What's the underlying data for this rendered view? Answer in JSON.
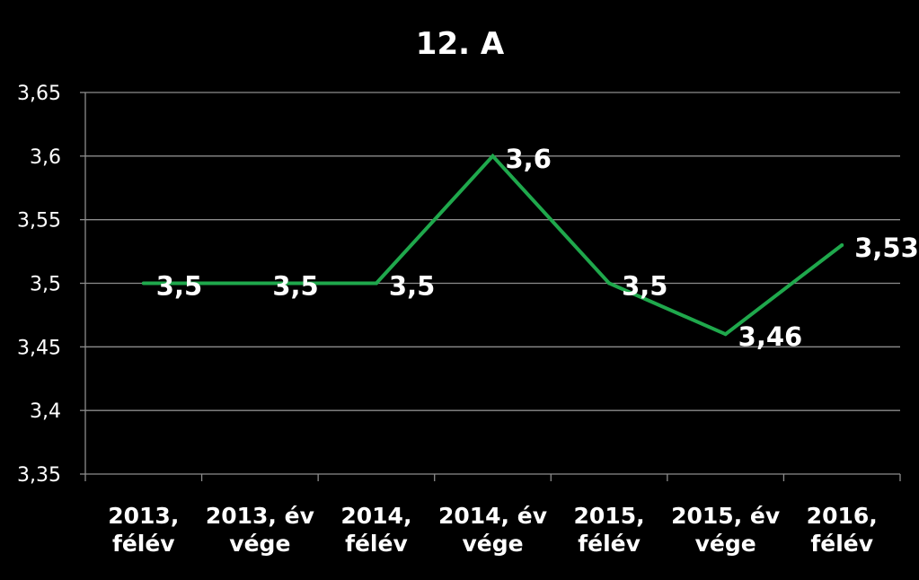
{
  "chart_data": {
    "type": "line",
    "title": "12. A",
    "xlabel": "",
    "ylabel": "",
    "categories": [
      [
        "2013,",
        "félév"
      ],
      [
        "2013, év",
        "vége"
      ],
      [
        "2014,",
        "félév"
      ],
      [
        "2014, év",
        "vége"
      ],
      [
        "2015,",
        "félév"
      ],
      [
        "2015, év",
        "vége"
      ],
      [
        "2016,",
        "félév"
      ]
    ],
    "series": [
      {
        "values": [
          3.5,
          3.5,
          3.5,
          3.6,
          3.5,
          3.46,
          3.53
        ],
        "labels": [
          "3,5",
          "3,5",
          "3,5",
          "3,6",
          "3,5",
          "3,46",
          "3,53"
        ],
        "color": "#1fa84c"
      }
    ],
    "ylim": [
      3.35,
      3.65
    ],
    "yticks": [
      3.35,
      3.4,
      3.45,
      3.5,
      3.55,
      3.6,
      3.65
    ],
    "ytick_labels": [
      "3,35",
      "3,4",
      "3,45",
      "3,5",
      "3,55",
      "3,6",
      "3,65"
    ],
    "grid": true,
    "legend": "none",
    "colors": {
      "background": "#000000",
      "text": "#ffffff",
      "grid": "#8c8c8c"
    }
  }
}
